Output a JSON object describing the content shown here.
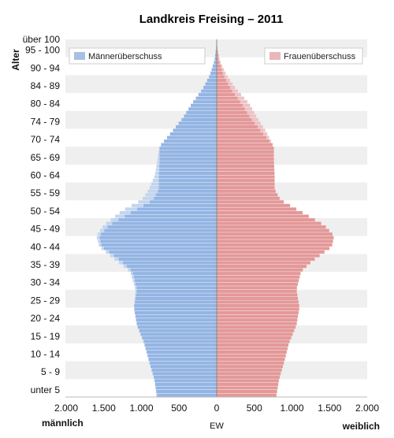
{
  "chart_data": {
    "type": "bar",
    "orientation": "horizontal-population-pyramid",
    "title": "Landkreis Freising – 2011",
    "ylabel": "Alter",
    "xlabel": "EW",
    "left_label": "männlich",
    "right_label": "weiblich",
    "xlim": [
      -2000,
      2000
    ],
    "x_ticks": [
      {
        "value": -2000,
        "label": "2.000"
      },
      {
        "value": -1500,
        "label": "1.500"
      },
      {
        "value": -1000,
        "label": "1.000"
      },
      {
        "value": -500,
        "label": "500"
      },
      {
        "value": 0,
        "label": "0"
      },
      {
        "value": 500,
        "label": "500"
      },
      {
        "value": 1000,
        "label": "1.000"
      },
      {
        "value": 1500,
        "label": "1.500"
      },
      {
        "value": 2000,
        "label": "2.000"
      }
    ],
    "age_min": 0,
    "age_max": 100,
    "y_ticks": [
      {
        "age": 2,
        "label": "unter 5"
      },
      {
        "age": 7,
        "label": "5 - 9"
      },
      {
        "age": 12,
        "label": "10 - 14"
      },
      {
        "age": 17,
        "label": "15 - 19"
      },
      {
        "age": 22,
        "label": "20 - 24"
      },
      {
        "age": 27,
        "label": "25 - 29"
      },
      {
        "age": 32,
        "label": "30 - 34"
      },
      {
        "age": 37,
        "label": "35 - 39"
      },
      {
        "age": 42,
        "label": "40 - 44"
      },
      {
        "age": 47,
        "label": "45 - 49"
      },
      {
        "age": 52,
        "label": "50 - 54"
      },
      {
        "age": 57,
        "label": "55 - 59"
      },
      {
        "age": 62,
        "label": "60 - 64"
      },
      {
        "age": 67,
        "label": "65 - 69"
      },
      {
        "age": 72,
        "label": "70 - 74"
      },
      {
        "age": 77,
        "label": "74 - 79"
      },
      {
        "age": 82,
        "label": "80 - 84"
      },
      {
        "age": 87,
        "label": "84 - 89"
      },
      {
        "age": 92,
        "label": "90 - 94"
      },
      {
        "age": 97,
        "label": "95 - 100"
      },
      {
        "age": 100,
        "label": "über 100"
      }
    ],
    "male_control_ages": [
      0,
      5,
      10,
      15,
      20,
      25,
      30,
      35,
      38,
      42,
      45,
      48,
      52,
      55,
      58,
      62,
      66,
      70,
      74,
      78,
      82,
      86,
      90,
      94,
      98,
      100
    ],
    "male_control_values": [
      800,
      830,
      900,
      970,
      1060,
      1100,
      1080,
      1150,
      1330,
      1560,
      1600,
      1500,
      1260,
      1000,
      900,
      820,
      790,
      760,
      600,
      450,
      330,
      190,
      90,
      30,
      5,
      0
    ],
    "female_control_ages": [
      0,
      5,
      10,
      15,
      20,
      25,
      30,
      35,
      38,
      42,
      45,
      48,
      52,
      55,
      58,
      62,
      66,
      70,
      74,
      78,
      82,
      86,
      90,
      94,
      98,
      100
    ],
    "female_control_values": [
      790,
      830,
      900,
      960,
      1060,
      1100,
      1060,
      1120,
      1270,
      1530,
      1560,
      1430,
      1100,
      850,
      770,
      770,
      760,
      760,
      660,
      540,
      430,
      260,
      130,
      40,
      8,
      0
    ],
    "legend": {
      "placement": "top",
      "entries": [
        {
          "label": "Männerüberschuss",
          "color": "#a7c1e3"
        },
        {
          "label": "Frauenüberschuss",
          "color": "#e9b7b9"
        }
      ]
    },
    "colors": {
      "male": "#93b5e4",
      "male_surplus": "#c3d5ef",
      "female": "#e49898",
      "female_surplus": "#eec3c5",
      "band": "#efefef",
      "zero_line": "#888888"
    }
  }
}
